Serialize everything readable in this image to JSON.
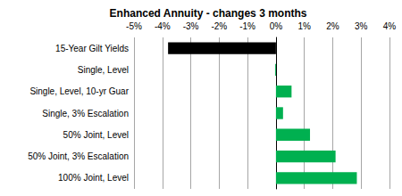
{
  "chart_data": {
    "type": "bar",
    "title": "Enhanced Annuity - changes 3 months",
    "orientation": "horizontal",
    "categories": [
      "15-Year Gilt Yields",
      "Single, Level",
      "Single, Level, 10-yr Guar",
      "Single, 3% Escalation",
      "50% Joint, Level",
      "50% Joint, 3% Escalation",
      "100% Joint, Level"
    ],
    "values": [
      -3.8,
      -0.03,
      0.55,
      0.25,
      1.2,
      2.1,
      2.85
    ],
    "colors": [
      "#000000",
      "#00b050",
      "#00b050",
      "#00b050",
      "#00b050",
      "#00b050",
      "#00b050"
    ],
    "xlim": [
      -5,
      4
    ],
    "xticks": [
      {
        "value": -5,
        "label": "-5%"
      },
      {
        "value": -4,
        "label": "-4%"
      },
      {
        "value": -3,
        "label": "-3%"
      },
      {
        "value": -2,
        "label": "-2%"
      },
      {
        "value": -1,
        "label": "-1%"
      },
      {
        "value": 0,
        "label": "0%"
      },
      {
        "value": 1,
        "label": "1%"
      },
      {
        "value": 2,
        "label": "2%"
      },
      {
        "value": 3,
        "label": "3%"
      },
      {
        "value": 4,
        "label": "4%"
      }
    ],
    "grid": true
  }
}
